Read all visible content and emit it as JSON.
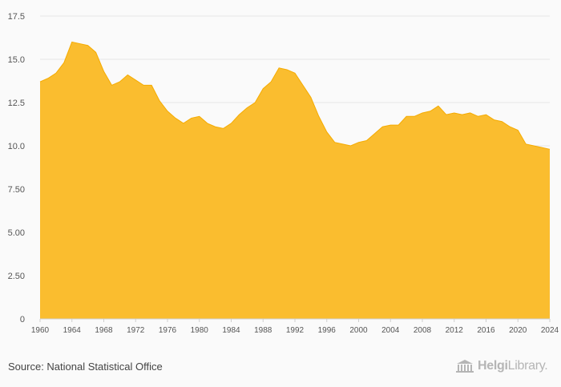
{
  "chart_data": {
    "type": "area",
    "title": "",
    "xlabel": "",
    "ylabel": "",
    "ylim": [
      0,
      17.5
    ],
    "yticks": [
      "0",
      "2.50",
      "5.00",
      "7.50",
      "10.0",
      "12.5",
      "15.0",
      "17.5"
    ],
    "xtick_labels": [
      "1960",
      "1964",
      "1968",
      "1972",
      "1976",
      "1980",
      "1984",
      "1988",
      "1992",
      "1996",
      "2000",
      "2004",
      "2008",
      "2012",
      "2016",
      "2020",
      "2024"
    ],
    "grid": true,
    "colors": {
      "fill": "#fabd2f",
      "line": "#f5ab00"
    },
    "x": [
      1960,
      1961,
      1962,
      1963,
      1964,
      1965,
      1966,
      1967,
      1968,
      1969,
      1970,
      1971,
      1972,
      1973,
      1974,
      1975,
      1976,
      1977,
      1978,
      1979,
      1980,
      1981,
      1982,
      1983,
      1984,
      1985,
      1986,
      1987,
      1988,
      1989,
      1990,
      1991,
      1992,
      1993,
      1994,
      1995,
      1996,
      1997,
      1998,
      1999,
      2000,
      2001,
      2002,
      2003,
      2004,
      2005,
      2006,
      2007,
      2008,
      2009,
      2010,
      2011,
      2012,
      2013,
      2014,
      2015,
      2016,
      2017,
      2018,
      2019,
      2020,
      2021,
      2022,
      2023,
      2024
    ],
    "values": [
      13.7,
      13.9,
      14.2,
      14.8,
      16.0,
      15.9,
      15.8,
      15.4,
      14.3,
      13.5,
      13.7,
      14.1,
      13.8,
      13.5,
      13.5,
      12.6,
      12.0,
      11.6,
      11.3,
      11.6,
      11.7,
      11.3,
      11.1,
      11.0,
      11.3,
      11.8,
      12.2,
      12.5,
      13.3,
      13.7,
      14.5,
      14.4,
      14.2,
      13.5,
      12.8,
      11.7,
      10.8,
      10.2,
      10.1,
      10.0,
      10.2,
      10.3,
      10.7,
      11.1,
      11.2,
      11.2,
      11.7,
      11.7,
      11.9,
      12.0,
      12.3,
      11.8,
      11.9,
      11.8,
      11.9,
      11.7,
      11.8,
      11.5,
      11.4,
      11.1,
      10.9,
      10.1,
      10.0,
      9.9,
      9.8
    ]
  },
  "footer": {
    "source": "Source: National Statistical Office",
    "brand_part1": "Helgi",
    "brand_part2": "Library."
  }
}
